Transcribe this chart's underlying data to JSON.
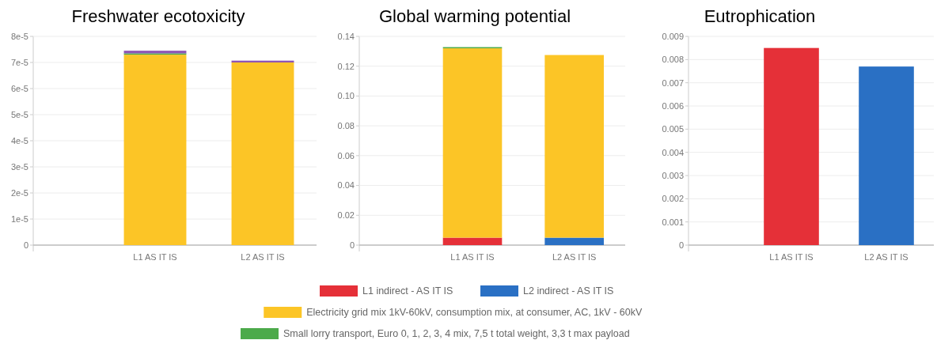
{
  "chart_data": [
    {
      "type": "bar",
      "title": "Freshwater ecotoxicity",
      "stacked": true,
      "categories": [
        null,
        "L1 AS IT IS",
        "L2 AS IT IS"
      ],
      "ylim": [
        0,
        8e-05
      ],
      "yticks": [
        {
          "value": 0,
          "label": "0"
        },
        {
          "value": 1e-05,
          "label": "1e-5"
        },
        {
          "value": 2e-05,
          "label": "2e-5"
        },
        {
          "value": 3e-05,
          "label": "3e-5"
        },
        {
          "value": 4e-05,
          "label": "4e-5"
        },
        {
          "value": 5e-05,
          "label": "5e-5"
        },
        {
          "value": 6e-05,
          "label": "6e-5"
        },
        {
          "value": 7e-05,
          "label": "7e-5"
        },
        {
          "value": 8e-05,
          "label": "8e-5"
        }
      ],
      "grid": "y",
      "legend": false,
      "series": [
        {
          "color": "#fcc526",
          "values": [
            null,
            7.3e-05,
            7e-05
          ]
        },
        {
          "color": "#4caa4a",
          "values": [
            null,
            5e-07,
            null
          ]
        },
        {
          "color": "#8e55b5",
          "values": [
            null,
            1e-06,
            7e-07
          ]
        }
      ]
    },
    {
      "type": "bar",
      "title": "Global warming potential",
      "stacked": true,
      "categories": [
        null,
        "L1 AS IT IS",
        "L2 AS IT IS"
      ],
      "ylim": [
        0,
        0.14
      ],
      "yticks": [
        {
          "value": 0,
          "label": "0"
        },
        {
          "value": 0.02,
          "label": "0.02"
        },
        {
          "value": 0.04,
          "label": "0.04"
        },
        {
          "value": 0.06,
          "label": "0.06"
        },
        {
          "value": 0.08,
          "label": "0.08"
        },
        {
          "value": 0.1,
          "label": "0.10"
        },
        {
          "value": 0.12,
          "label": "0.12"
        },
        {
          "value": 0.14,
          "label": "0.14"
        }
      ],
      "grid": "y",
      "legend": "bottom",
      "series": [
        {
          "name": "L1 indirect - AS IT IS",
          "color": "#e53038",
          "values": [
            null,
            0.005,
            null
          ]
        },
        {
          "name": "L2 indirect - AS IT IS",
          "color": "#2a70c4",
          "values": [
            null,
            null,
            0.005
          ]
        },
        {
          "name": "Electricity grid mix 1kV-60kV, consumption mix, at consumer, AC, 1kV - 60kV",
          "color": "#fcc526",
          "values": [
            null,
            0.127,
            0.1225
          ]
        },
        {
          "name": "Small lorry transport, Euro 0, 1, 2, 3, 4 mix, 7,5 t total weight, 3,3 t max payload",
          "color": "#4caa4a",
          "values": [
            null,
            0.0008,
            null
          ]
        }
      ]
    },
    {
      "type": "bar",
      "title": "Eutrophication",
      "stacked": true,
      "categories": [
        null,
        "L1 AS IT IS",
        "L2 AS IT IS"
      ],
      "ylim": [
        0,
        0.009
      ],
      "yticks": [
        {
          "value": 0,
          "label": "0"
        },
        {
          "value": 0.001,
          "label": "0.001"
        },
        {
          "value": 0.002,
          "label": "0.002"
        },
        {
          "value": 0.003,
          "label": "0.003"
        },
        {
          "value": 0.004,
          "label": "0.004"
        },
        {
          "value": 0.005,
          "label": "0.005"
        },
        {
          "value": 0.006,
          "label": "0.006"
        },
        {
          "value": 0.007,
          "label": "0.007"
        },
        {
          "value": 0.008,
          "label": "0.008"
        },
        {
          "value": 0.009,
          "label": "0.009"
        }
      ],
      "grid": "y",
      "legend": false,
      "series": [
        {
          "color": "#e53038",
          "values": [
            null,
            0.0085,
            null
          ]
        },
        {
          "color": "#2a70c4",
          "values": [
            null,
            null,
            0.0077
          ]
        }
      ]
    }
  ]
}
